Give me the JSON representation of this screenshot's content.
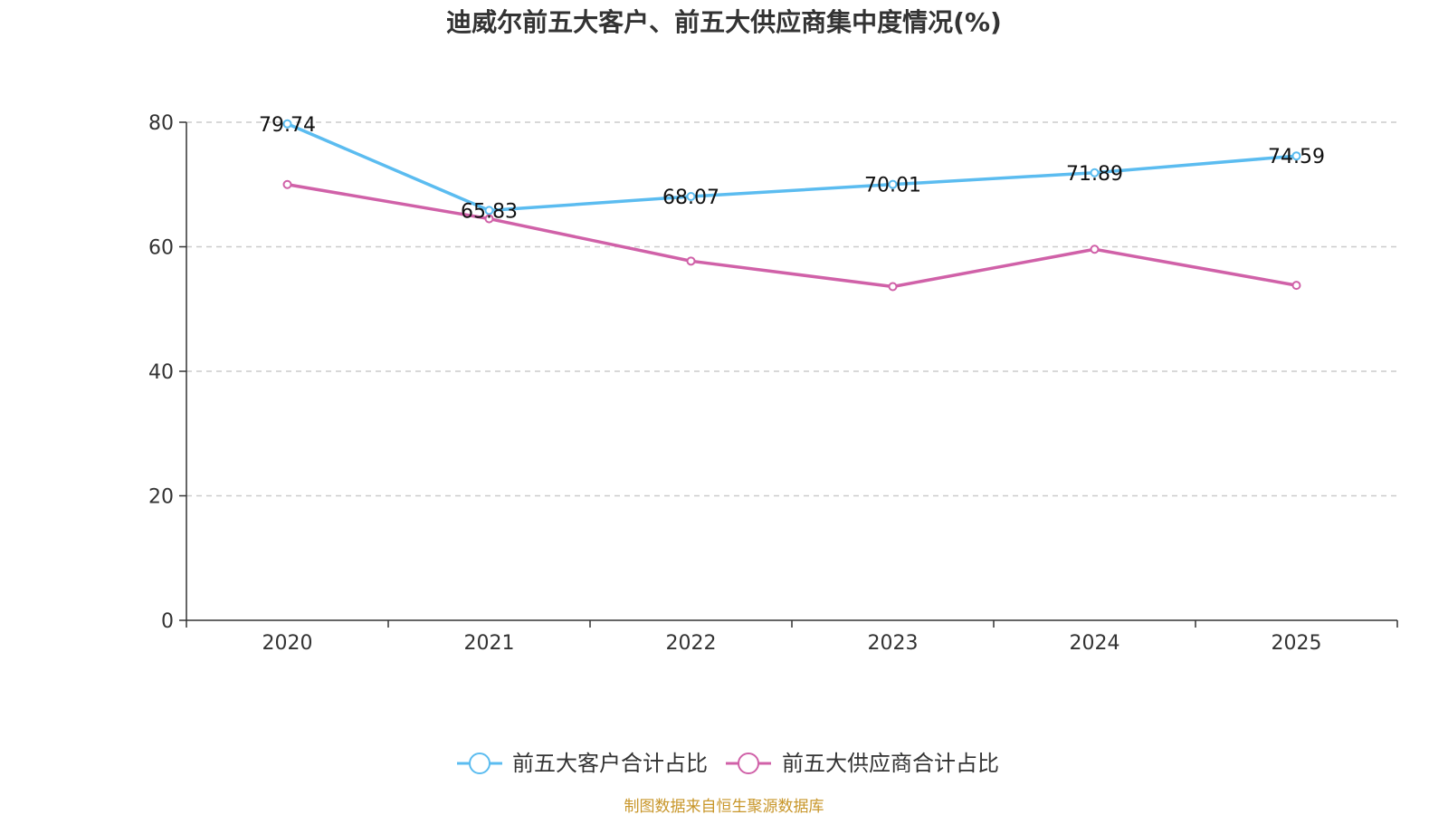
{
  "chart_data": {
    "type": "line",
    "title": "迪威尔前五大客户、前五大供应商集中度情况(%)",
    "categories": [
      "2020",
      "2021",
      "2022",
      "2023",
      "2024",
      "2025"
    ],
    "ylim": [
      0,
      80
    ],
    "yticks": [
      0,
      20,
      40,
      60,
      80
    ],
    "grid": true,
    "legend_position": "bottom-center",
    "series": [
      {
        "name": "前五大客户合计占比",
        "color": "#5bbcf0",
        "values": [
          79.74,
          65.83,
          68.07,
          70.01,
          71.89,
          74.59
        ],
        "labels": [
          "79.74",
          "65.83",
          "68.07",
          "70.01",
          "71.89",
          "74.59"
        ]
      },
      {
        "name": "前五大供应商合计占比",
        "color": "#d061a8",
        "values": [
          70.0,
          64.5,
          57.7,
          53.6,
          59.6,
          53.8
        ]
      }
    ],
    "source": "制图数据来自恒生聚源数据库"
  }
}
